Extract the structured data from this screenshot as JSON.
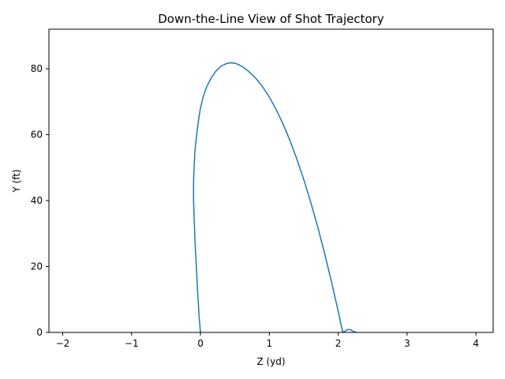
{
  "chart_data": {
    "type": "line",
    "title": "Down-the-Line View of Shot Trajectory",
    "xlabel": "Z (yd)",
    "ylabel": "Y (ft)",
    "xlim": [
      -2.2,
      4.25
    ],
    "ylim": [
      0,
      92
    ],
    "xticks": [
      -2,
      -1,
      0,
      1,
      2,
      3,
      4
    ],
    "xtick_labels": [
      "−2",
      "−1",
      "0",
      "1",
      "2",
      "3",
      "4"
    ],
    "yticks": [
      0,
      20,
      40,
      60,
      80
    ],
    "ytick_labels": [
      "0",
      "20",
      "40",
      "60",
      "80"
    ],
    "grid": false,
    "series": [
      {
        "color": "#1f77b4",
        "x": [
          0.0,
          -0.02,
          -0.04,
          -0.06,
          -0.08,
          -0.09,
          -0.1,
          -0.1,
          -0.09,
          -0.08,
          -0.06,
          -0.04,
          -0.02,
          0.0,
          0.04,
          0.09,
          0.15,
          0.22,
          0.3,
          0.38,
          0.44,
          0.5,
          0.55,
          0.62,
          0.7,
          0.8,
          0.9,
          1.0,
          1.1,
          1.2,
          1.3,
          1.4,
          1.5,
          1.6,
          1.7,
          1.8,
          1.9,
          2.0,
          2.05,
          2.07,
          2.1,
          2.14,
          2.18,
          2.22,
          2.26
        ],
        "y": [
          0.0,
          5.0,
          12.0,
          20.0,
          28.0,
          34.0,
          40.0,
          46.0,
          51.0,
          55.0,
          59.0,
          62.5,
          65.5,
          68.0,
          71.5,
          74.5,
          77.0,
          79.2,
          80.8,
          81.6,
          81.8,
          81.7,
          81.3,
          80.5,
          79.2,
          77.2,
          74.6,
          71.4,
          67.6,
          63.2,
          58.2,
          52.6,
          46.4,
          39.6,
          32.2,
          24.2,
          15.6,
          6.4,
          1.5,
          0.0,
          0.4,
          0.9,
          0.8,
          0.3,
          0.0
        ]
      }
    ]
  }
}
